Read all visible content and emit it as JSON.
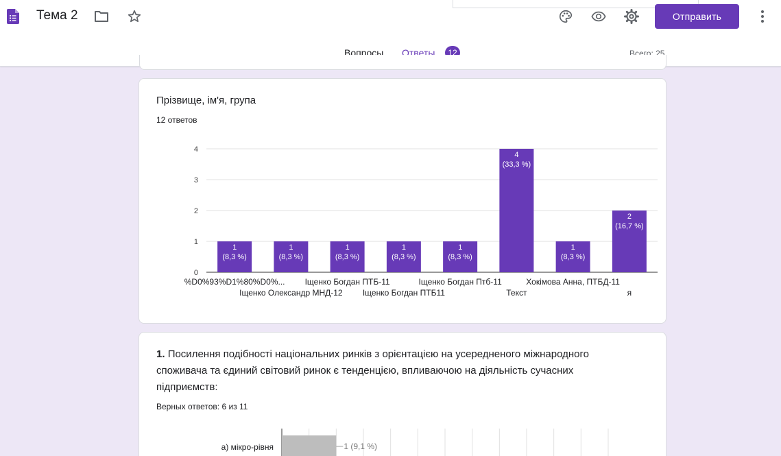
{
  "app": {
    "title": "Тема 2",
    "send_label": "Отправить",
    "accent": "#673ab7",
    "icons": [
      "forms-doc-icon",
      "folder-icon",
      "star-icon",
      "palette-icon",
      "eye-icon",
      "gear-icon",
      "more-vert-icon"
    ]
  },
  "tabs": {
    "questions": "Вопросы",
    "answers": "Ответы",
    "answers_badge": "12",
    "total": "Всего: 25"
  },
  "question1": {
    "title": "Прізвище, ім'я, група",
    "count": "12 ответов"
  },
  "question2": {
    "number": "1.",
    "text": "Посилення подібності національних ринків з орієнтацією на усередненого міжнародного споживача та єдиний світовий ринок є тенденцією, впливаючою на діяльність сучасних підприємств:",
    "correct": "Верных ответов: 6 из 11"
  },
  "chart_data": [
    {
      "type": "bar",
      "title": "",
      "xlabel": "",
      "ylabel": "",
      "ylim": [
        0,
        4
      ],
      "yticks": [
        "0",
        "1",
        "2",
        "3",
        "4"
      ],
      "grid": true,
      "bar_color": "#673ab7",
      "categories": [
        "%D0%93%D1%80%D0%...",
        "Іщенко Олександр МНД-12",
        "Іщенко Богдан ПТБ-11",
        "Іщенко Богдан ПТБ11",
        "Іщенко Богдан Птб-11",
        "Текст",
        "Хокімова Анна, ПТБД-11",
        "я"
      ],
      "values": [
        1,
        1,
        1,
        1,
        1,
        4,
        1,
        2
      ],
      "labels": [
        "1",
        "1",
        "1",
        "1",
        "1",
        "4",
        "1",
        "2"
      ],
      "percents": [
        "(8,3 %)",
        "(8,3 %)",
        "(8,3 %)",
        "(8,3 %)",
        "(8,3 %)",
        "(33,3 %)",
        "(8,3 %)",
        "(16,7 %)"
      ]
    },
    {
      "type": "bar",
      "orientation": "horizontal",
      "title": "",
      "bar_color": "#bdbdbd",
      "categories": [
        "а) мікро-рівня"
      ],
      "values": [
        1
      ],
      "xlim": [
        0,
        11
      ],
      "labels": [
        "1 (9,1 %)"
      ]
    }
  ]
}
